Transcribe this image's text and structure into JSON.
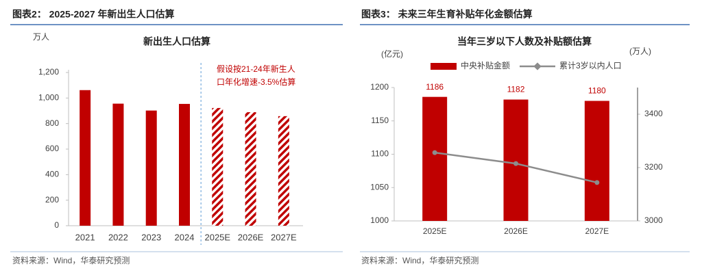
{
  "figures": [
    {
      "caption": "图表2：  2025-2027 年新出生人口估算",
      "source": "资料来源：Wind，华泰研究预测"
    },
    {
      "caption": "图表3：  未来三年生育补贴年化金额估算",
      "source": "资料来源：Wind，华泰研究预测"
    }
  ],
  "chart_data": [
    {
      "type": "bar",
      "title": "新出生人口估算",
      "y_unit": "万人",
      "categories": [
        "2021",
        "2022",
        "2023",
        "2024",
        "2025E",
        "2026E",
        "2027E"
      ],
      "values": [
        1062,
        956,
        902,
        954,
        922,
        889,
        858
      ],
      "hatch": [
        false,
        false,
        false,
        false,
        true,
        true,
        true
      ],
      "color": "#c00000",
      "annotation": [
        "假设按21-24年新生人",
        "口年化增速-3.5%估算"
      ],
      "ylim": [
        0,
        1200
      ],
      "yticks": [
        0,
        200,
        400,
        600,
        800,
        {
          "value": 1000,
          "label": "1,000"
        },
        {
          "value": 1200,
          "label": "1,200"
        }
      ]
    },
    {
      "type": "bar-line",
      "title": "当年三岁以下人数及补贴额估算",
      "y_unit": "(亿元)",
      "y2_unit": "(万人)",
      "categories": [
        "2025E",
        "2026E",
        "2027E"
      ],
      "series": [
        {
          "name": "中央补贴金额",
          "color": "#c00000",
          "values": [
            1186,
            1182,
            1180
          ]
        },
        {
          "name": "累计3岁以内人口",
          "color": "#8c8c8c",
          "values": [
            3256,
            3215,
            3144
          ],
          "axis": "y2"
        }
      ],
      "ylim": [
        1000,
        1200
      ],
      "yticks": [
        1000,
        1050,
        1100,
        1150,
        1200
      ],
      "y2lim": [
        3000,
        3500
      ],
      "y2ticks": [
        3000,
        3200,
        3400
      ]
    }
  ]
}
